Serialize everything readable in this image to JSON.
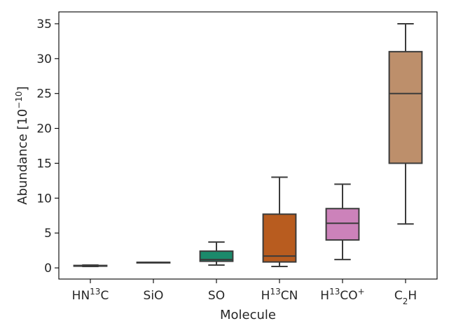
{
  "chart_data": {
    "type": "box",
    "xlabel": "Molecule",
    "ylabel": {
      "main": "Abundance [10",
      "sup": "−10",
      "close": "]"
    },
    "ylim": [
      -1.6,
      36.7
    ],
    "yticks": [
      0,
      5,
      10,
      15,
      20,
      25,
      30,
      35
    ],
    "grid": false,
    "legend": "none",
    "categories": [
      {
        "parts": [
          {
            "t": "HN"
          },
          {
            "t": "13",
            "sup": true
          },
          {
            "t": "C"
          }
        ]
      },
      {
        "parts": [
          {
            "t": "SiO"
          }
        ]
      },
      {
        "parts": [
          {
            "t": "SO"
          }
        ]
      },
      {
        "parts": [
          {
            "t": "H"
          },
          {
            "t": "13",
            "sup": true
          },
          {
            "t": "CN"
          }
        ]
      },
      {
        "parts": [
          {
            "t": "H"
          },
          {
            "t": "13",
            "sup": true
          },
          {
            "t": "CO"
          },
          {
            "t": "+",
            "sup": true
          }
        ]
      },
      {
        "parts": [
          {
            "t": "C"
          },
          {
            "t": "2",
            "sub": true
          },
          {
            "t": "H"
          }
        ]
      }
    ],
    "boxes": [
      {
        "name": "HN13C",
        "whisker_low": 0.2,
        "q1": 0.25,
        "median": 0.3,
        "q3": 0.35,
        "whisker_high": 0.4,
        "color": "#2a6fa1"
      },
      {
        "name": "SiO",
        "whisker_low": 0.8,
        "q1": 0.8,
        "median": 0.8,
        "q3": 0.8,
        "whisker_high": 0.8,
        "color": "#d9892a"
      },
      {
        "name": "SO",
        "whisker_low": 0.4,
        "q1": 0.95,
        "median": 1.2,
        "q3": 2.4,
        "whisker_high": 3.7,
        "color": "#1b8a6b"
      },
      {
        "name": "H13CN",
        "whisker_low": 0.2,
        "q1": 0.85,
        "median": 1.7,
        "q3": 7.7,
        "whisker_high": 13.0,
        "color": "#b85c1f"
      },
      {
        "name": "H13CO+",
        "whisker_low": 1.2,
        "q1": 4.0,
        "median": 6.4,
        "q3": 8.5,
        "whisker_high": 12.0,
        "color": "#cc82ba"
      },
      {
        "name": "C2H",
        "whisker_low": 6.3,
        "q1": 15.0,
        "median": 25.0,
        "q3": 31.0,
        "whisker_high": 35.0,
        "color": "#bd8f6b"
      }
    ]
  }
}
